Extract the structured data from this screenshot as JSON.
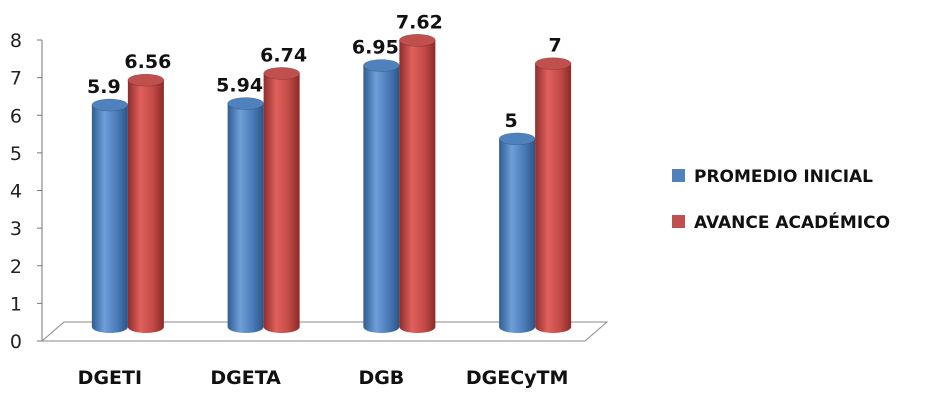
{
  "chart_data": {
    "type": "bar",
    "categories": [
      "DGETI",
      "DGETA",
      "DGB",
      "DGECyTM"
    ],
    "series": [
      {
        "name": "PROMEDIO INICIAL",
        "values": [
          5.9,
          5.94,
          6.95,
          5
        ],
        "labels": [
          "5.9",
          "5.94",
          "6.95",
          "5"
        ],
        "color": "#4F81BD"
      },
      {
        "name": "AVANCE ACADÉMICO",
        "values": [
          6.56,
          6.74,
          7.62,
          7
        ],
        "labels": [
          "6.56",
          "6.74",
          "7.62",
          "7"
        ],
        "color": "#C0504D"
      }
    ],
    "ylim": [
      0,
      8
    ],
    "yticks": [
      "0",
      "1",
      "2",
      "3",
      "4",
      "5",
      "6",
      "7",
      "8"
    ],
    "grid": false,
    "legend": "right",
    "style": "3d-cylinder"
  }
}
